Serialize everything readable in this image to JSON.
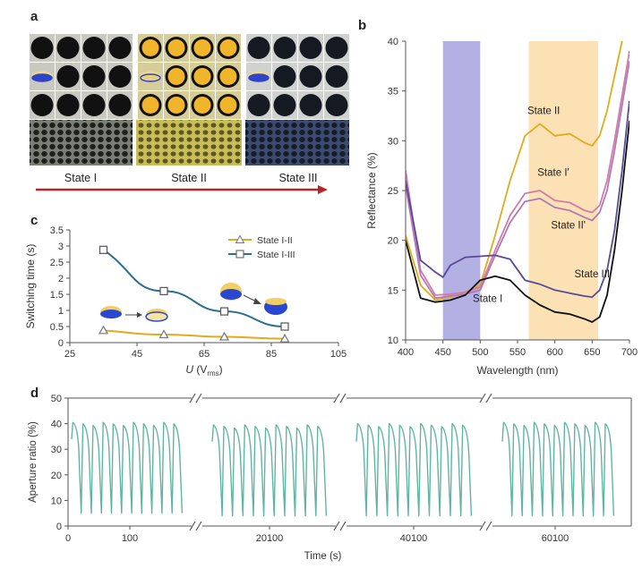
{
  "panel_a": {
    "letter": "a",
    "states": [
      "State I",
      "State II",
      "State III"
    ]
  },
  "panel_b": {
    "letter": "b",
    "chart_data": {
      "type": "line",
      "xlabel": "Wavelength (nm)",
      "ylabel": "Reflectance (%)",
      "xlim": [
        400,
        700
      ],
      "ylim": [
        10,
        40
      ],
      "xticks": [
        400,
        450,
        500,
        550,
        600,
        650,
        700
      ],
      "yticks": [
        10,
        15,
        20,
        25,
        30,
        35,
        40
      ],
      "bands": [
        {
          "from": 450,
          "to": 500,
          "color": "#b3b0e3"
        },
        {
          "from": 565,
          "to": 658,
          "color": "#fbe1b3"
        }
      ],
      "series": [
        {
          "name": "State II",
          "color": "#e2aa1c",
          "x": [
            400,
            420,
            440,
            460,
            480,
            500,
            520,
            540,
            560,
            580,
            600,
            620,
            640,
            650,
            660,
            670,
            680,
            690,
            700
          ],
          "y": [
            20.5,
            15.5,
            14.0,
            14.3,
            14.8,
            15.5,
            20.5,
            26.0,
            30.5,
            31.7,
            30.5,
            30.7,
            29.8,
            29.5,
            30.5,
            33.0,
            36.5,
            40.0,
            42.0
          ]
        },
        {
          "name": "State I'",
          "color": "#d27aab",
          "x": [
            400,
            420,
            440,
            460,
            480,
            500,
            520,
            540,
            560,
            580,
            600,
            620,
            640,
            650,
            660,
            670,
            680,
            690,
            700
          ],
          "y": [
            27.0,
            17.0,
            14.5,
            14.6,
            14.8,
            15.3,
            19.0,
            22.5,
            24.7,
            25.0,
            24.0,
            23.8,
            23.0,
            22.8,
            23.5,
            26.0,
            30.0,
            34.5,
            39.0
          ]
        },
        {
          "name": "State II'",
          "color": "#b07ab5",
          "x": [
            400,
            420,
            440,
            460,
            480,
            500,
            520,
            540,
            560,
            580,
            600,
            620,
            640,
            650,
            660,
            670,
            680,
            690,
            700
          ],
          "y": [
            25.5,
            16.5,
            14.2,
            14.4,
            14.6,
            15.0,
            18.5,
            21.8,
            23.9,
            24.2,
            23.3,
            23.0,
            22.3,
            22.0,
            22.8,
            25.0,
            29.0,
            33.5,
            38.0
          ]
        },
        {
          "name": "State III",
          "color": "#5a4a98",
          "x": [
            400,
            420,
            440,
            450,
            460,
            480,
            500,
            520,
            540,
            560,
            580,
            600,
            620,
            640,
            650,
            660,
            670,
            680,
            690,
            700
          ],
          "y": [
            26.0,
            18.0,
            16.8,
            16.3,
            17.5,
            18.3,
            18.4,
            18.5,
            18.1,
            16.0,
            15.6,
            15.0,
            14.7,
            14.4,
            14.3,
            15.0,
            17.0,
            21.0,
            27.0,
            34.0
          ]
        },
        {
          "name": "State I",
          "color": "#111111",
          "x": [
            400,
            420,
            440,
            460,
            480,
            500,
            520,
            540,
            560,
            580,
            600,
            620,
            640,
            650,
            660,
            670,
            680,
            690,
            700
          ],
          "y": [
            20.0,
            14.2,
            13.8,
            14.0,
            14.5,
            16.0,
            16.4,
            16.0,
            14.5,
            13.5,
            12.8,
            12.6,
            12.1,
            11.8,
            12.3,
            14.5,
            19.0,
            25.0,
            32.0
          ]
        }
      ],
      "labels": [
        {
          "text": "State II",
          "x": 585,
          "y": 32.7
        },
        {
          "text": "State I'",
          "x": 598,
          "y": 26.5
        },
        {
          "text": "State II'",
          "x": 618,
          "y": 21.2
        },
        {
          "text": "State III",
          "x": 650,
          "y": 16.3
        },
        {
          "text": "State I",
          "x": 510,
          "y": 13.8
        }
      ]
    }
  },
  "panel_c": {
    "letter": "c",
    "chart_data": {
      "type": "line",
      "xlabel_main": "U",
      "xlabel_unit_pre": "(V",
      "xlabel_unit_sub": "rms",
      "xlabel_unit_post": ")",
      "ylabel": "Switching time (s)",
      "xlim": [
        25,
        105
      ],
      "ylim": [
        0,
        3.5
      ],
      "xticks": [
        25,
        45,
        65,
        85,
        105
      ],
      "yticks": [
        0,
        0.5,
        1,
        1.5,
        2,
        2.5,
        3,
        3.5
      ],
      "series": [
        {
          "name": "State I-II",
          "color": "#e2aa1c",
          "marker": "triangle",
          "x": [
            35,
            53,
            71,
            89
          ],
          "y": [
            0.38,
            0.25,
            0.18,
            0.12
          ]
        },
        {
          "name": "State I-III",
          "color": "#2c6f92",
          "marker": "square",
          "x": [
            35,
            53,
            71,
            89
          ],
          "y": [
            2.88,
            1.6,
            0.97,
            0.5
          ]
        }
      ]
    }
  },
  "panel_d": {
    "letter": "d",
    "chart_data": {
      "type": "line",
      "xlabel": "Time (s)",
      "ylabel": "Aperture ratio (%)",
      "ylim": [
        0,
        50
      ],
      "yticks": [
        0,
        10,
        20,
        30,
        40,
        50
      ],
      "xtick_labels": [
        "0",
        "100",
        "20100",
        "40100",
        "60100"
      ],
      "color": "#5fb6a0",
      "segments": [
        {
          "peaks": 11,
          "max": 40.5,
          "min": 4
        },
        {
          "peaks": 11,
          "max": 39.5,
          "min": 3
        },
        {
          "peaks": 11,
          "max": 40.0,
          "min": 3
        },
        {
          "peaks": 11,
          "max": 40.5,
          "min": 3
        }
      ]
    }
  }
}
